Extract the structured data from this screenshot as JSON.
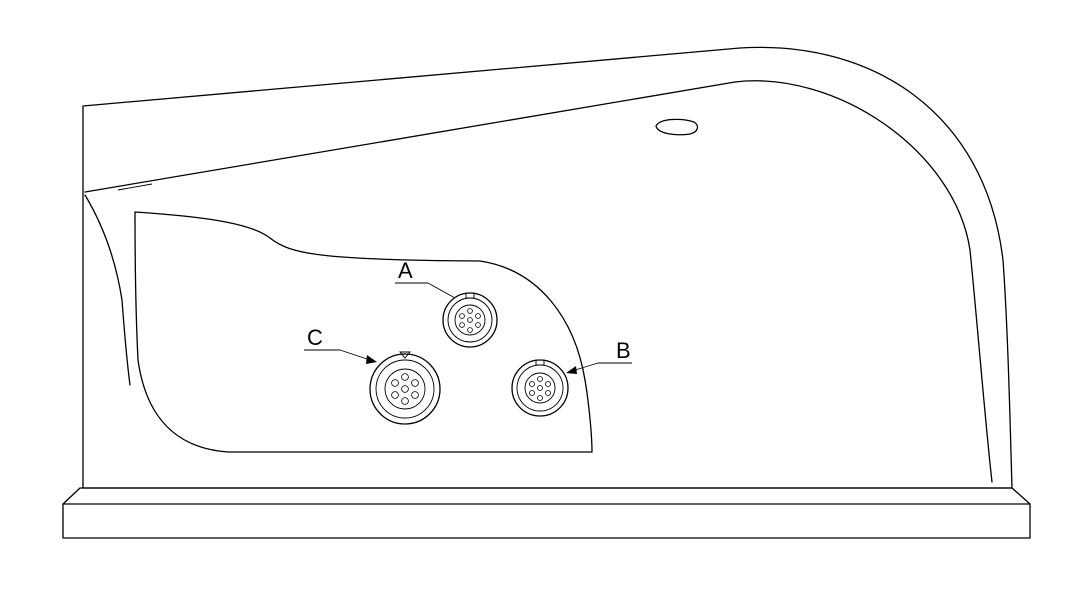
{
  "callouts": {
    "a": {
      "letter": "A"
    },
    "b": {
      "letter": "B"
    },
    "c": {
      "letter": "C"
    }
  },
  "colors": {
    "line": "#000000",
    "background": "#ffffff"
  }
}
